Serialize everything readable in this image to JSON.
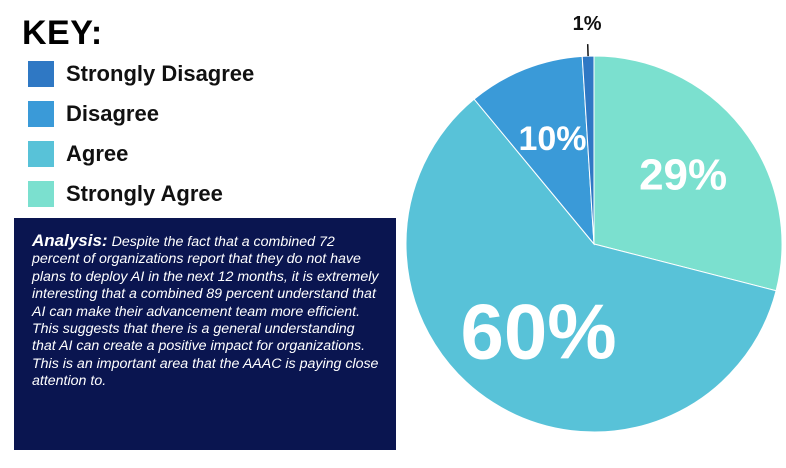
{
  "key": {
    "title": "KEY:"
  },
  "legend": [
    {
      "label": "Strongly Disagree",
      "color": "#2f78c4"
    },
    {
      "label": "Disagree",
      "color": "#3a9ad8"
    },
    {
      "label": "Agree",
      "color": "#58c2d8"
    },
    {
      "label": "Strongly Agree",
      "color": "#7be0cf"
    }
  ],
  "analysis": {
    "label": "Analysis:",
    "text": "Despite the fact that a combined 72 percent of organizations report that they do not have plans to deploy AI in the next 12 months, it is extremely interesting that a combined 89 percent understand that AI can make their advancement team more efficient. This suggests that there is a general understanding that AI can create a positive impact for organizations. This is an important area that the AAAC is paying close attention to."
  },
  "chart_data": {
    "type": "pie",
    "slices": [
      {
        "name": "Strongly Agree",
        "value": 29,
        "label": "29%",
        "color": "#7be0cf"
      },
      {
        "name": "Agree",
        "value": 60,
        "label": "60%",
        "color": "#58c2d8"
      },
      {
        "name": "Disagree",
        "value": 10,
        "label": "10%",
        "color": "#3a9ad8"
      },
      {
        "name": "Strongly Disagree",
        "value": 1,
        "label": "1%",
        "color": "#2f78c4"
      }
    ],
    "start": "12 o'clock",
    "direction": "clockwise",
    "legend_position": "top-left"
  }
}
